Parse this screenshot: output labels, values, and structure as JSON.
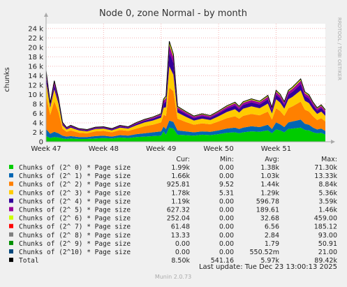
{
  "chart_data": {
    "type": "area",
    "stacked": true,
    "title": "Node 0, zone Normal - by month",
    "ylabel": "chunks",
    "right_label": "RRDTOOL / TOBI OETIKER",
    "ylim": [
      0,
      25000
    ],
    "yticks": [
      {
        "value": 0,
        "label": "0"
      },
      {
        "value": 2000,
        "label": "2 k"
      },
      {
        "value": 4000,
        "label": "4 k"
      },
      {
        "value": 6000,
        "label": "6 k"
      },
      {
        "value": 8000,
        "label": "8 k"
      },
      {
        "value": 10000,
        "label": "10 k"
      },
      {
        "value": 12000,
        "label": "12 k"
      },
      {
        "value": 14000,
        "label": "14 k"
      },
      {
        "value": 16000,
        "label": "16 k"
      },
      {
        "value": 18000,
        "label": "18 k"
      },
      {
        "value": 20000,
        "label": "20 k"
      },
      {
        "value": 22000,
        "label": "22 k"
      },
      {
        "value": 24000,
        "label": "24 k"
      }
    ],
    "x_range": [
      0,
      34
    ],
    "xticks": [
      {
        "value": 0,
        "label": "Week 47"
      },
      {
        "value": 7,
        "label": "Week 48"
      },
      {
        "value": 14,
        "label": "Week 49"
      },
      {
        "value": 21,
        "label": "Week 50"
      },
      {
        "value": 28,
        "label": "Week 51"
      }
    ],
    "x": [
      0,
      0.5,
      1,
      1.5,
      2,
      2.5,
      3,
      4,
      5,
      6,
      7,
      8,
      9,
      10,
      11,
      12,
      13,
      14,
      14.3,
      14.6,
      15,
      15.5,
      16,
      17,
      18,
      19,
      20,
      21,
      22,
      23,
      23.5,
      24,
      25,
      26,
      27,
      27.5,
      28,
      28.5,
      29,
      29.5,
      30,
      30.5,
      31,
      31.5,
      32,
      32.5,
      33,
      33.5,
      34
    ],
    "series": [
      {
        "name": "Chunks of (2^ 0) * Page size",
        "color": "#00cc00",
        "values": [
          1200,
          800,
          1000,
          900,
          700,
          600,
          700,
          600,
          600,
          700,
          800,
          700,
          900,
          800,
          1000,
          1100,
          1200,
          1300,
          2200,
          1500,
          3000,
          2800,
          1500,
          1400,
          1300,
          1500,
          1400,
          1600,
          1900,
          2000,
          1800,
          2000,
          2200,
          2100,
          2400,
          1800,
          2600,
          2400,
          2000,
          2700,
          2800,
          2900,
          3000,
          2500,
          2400,
          2000,
          1800,
          1900,
          1500
        ]
      },
      {
        "name": "Chunks of (2^ 1) * Page size",
        "color": "#0066b3",
        "values": [
          1500,
          900,
          1100,
          900,
          600,
          500,
          500,
          400,
          400,
          500,
          500,
          400,
          500,
          500,
          600,
          700,
          800,
          900,
          1000,
          1200,
          1500,
          1400,
          900,
          800,
          700,
          700,
          700,
          800,
          900,
          1000,
          900,
          1000,
          1100,
          1000,
          1200,
          900,
          1500,
          1300,
          1100,
          1400,
          1500,
          1600,
          1700,
          1300,
          1200,
          1000,
          800,
          900,
          800
        ]
      },
      {
        "name": "Chunks of (2^ 2) * Page size",
        "color": "#ff8000",
        "values": [
          7000,
          4000,
          6500,
          4500,
          1500,
          1000,
          1200,
          900,
          800,
          1000,
          1000,
          900,
          1100,
          1000,
          1200,
          1500,
          1600,
          1900,
          2500,
          2800,
          7000,
          6500,
          2500,
          2000,
          1600,
          1700,
          1600,
          1900,
          2200,
          2400,
          2200,
          2500,
          2600,
          2500,
          2800,
          2000,
          3000,
          2800,
          2400,
          3000,
          3200,
          3500,
          3800,
          3000,
          2800,
          2400,
          2000,
          2200,
          2000
        ]
      },
      {
        "name": "Chunks of (2^ 3) * Page size",
        "color": "#ffcc00",
        "values": [
          3000,
          1500,
          2500,
          1800,
          700,
          500,
          600,
          500,
          400,
          500,
          500,
          400,
          500,
          500,
          700,
          800,
          900,
          1000,
          1500,
          1800,
          4500,
          3500,
          1300,
          1100,
          900,
          1000,
          900,
          1100,
          1300,
          1500,
          1300,
          1500,
          1600,
          1500,
          1700,
          1300,
          1900,
          1800,
          1500,
          1900,
          2000,
          2200,
          2400,
          1900,
          1800,
          1500,
          1300,
          1400,
          1200
        ]
      },
      {
        "name": "Chunks of (2^ 4) * Page size",
        "color": "#330099",
        "values": [
          1200,
          500,
          900,
          600,
          300,
          200,
          250,
          200,
          200,
          200,
          200,
          200,
          250,
          200,
          300,
          350,
          400,
          450,
          900,
          1200,
          3000,
          2500,
          700,
          600,
          500,
          550,
          500,
          600,
          700,
          800,
          700,
          800,
          850,
          800,
          900,
          700,
          1000,
          950,
          800,
          1000,
          1100,
          1200,
          1300,
          1000,
          950,
          800,
          700,
          750,
          650
        ]
      },
      {
        "name": "Chunks of (2^ 5) * Page size",
        "color": "#990099",
        "values": [
          800,
          300,
          600,
          400,
          200,
          150,
          150,
          120,
          120,
          120,
          120,
          120,
          150,
          120,
          180,
          200,
          220,
          250,
          600,
          800,
          1500,
          1200,
          400,
          350,
          300,
          320,
          300,
          350,
          400,
          450,
          400,
          450,
          500,
          450,
          550,
          400,
          600,
          550,
          450,
          600,
          650,
          700,
          750,
          600,
          550,
          450,
          400,
          450,
          400
        ]
      },
      {
        "name": "Chunks of (2^ 6) * Page size",
        "color": "#ccff00",
        "values": [
          300,
          120,
          250,
          150,
          80,
          60,
          60,
          50,
          50,
          50,
          50,
          50,
          60,
          50,
          70,
          80,
          90,
          100,
          250,
          300,
          600,
          500,
          150,
          130,
          110,
          120,
          110,
          130,
          150,
          170,
          150,
          170,
          180,
          170,
          200,
          150,
          220,
          200,
          170,
          220,
          240,
          260,
          280,
          220,
          200,
          170,
          150,
          170,
          150
        ]
      },
      {
        "name": "Chunks of (2^ 7) * Page size",
        "color": "#ff0000",
        "values": [
          80,
          30,
          60,
          40,
          20,
          15,
          15,
          12,
          12,
          12,
          12,
          12,
          15,
          12,
          18,
          20,
          22,
          25,
          60,
          80,
          150,
          120,
          40,
          35,
          30,
          32,
          30,
          35,
          40,
          45,
          40,
          45,
          50,
          45,
          55,
          40,
          60,
          55,
          45,
          60,
          65,
          70,
          75,
          60,
          55,
          45,
          40,
          45,
          40
        ]
      },
      {
        "name": "Chunks of (2^ 8) * Page size",
        "color": "#808080",
        "values": [
          20,
          8,
          15,
          10,
          5,
          4,
          4,
          3,
          3,
          3,
          3,
          3,
          4,
          3,
          5,
          5,
          6,
          7,
          15,
          20,
          40,
          30,
          10,
          9,
          8,
          8,
          8,
          9,
          10,
          11,
          10,
          11,
          12,
          11,
          13,
          10,
          15,
          14,
          11,
          15,
          16,
          17,
          18,
          15,
          14,
          11,
          10,
          11,
          10
        ]
      },
      {
        "name": "Chunks of (2^ 9) * Page size",
        "color": "#008f00",
        "values": [
          5,
          2,
          4,
          3,
          1,
          1,
          1,
          1,
          1,
          1,
          1,
          1,
          1,
          1,
          1,
          1,
          2,
          2,
          4,
          5,
          10,
          8,
          3,
          2,
          2,
          2,
          2,
          2,
          3,
          3,
          3,
          3,
          3,
          3,
          3,
          3,
          4,
          4,
          3,
          4,
          4,
          4,
          5,
          4,
          4,
          3,
          3,
          3,
          2
        ]
      },
      {
        "name": "Chunks of (2^10) * Page size",
        "color": "#00487d",
        "values": [
          1,
          0,
          1,
          0,
          0,
          0,
          0,
          0,
          0,
          0,
          0,
          0,
          0,
          0,
          0,
          0,
          0,
          0,
          1,
          1,
          2,
          2,
          1,
          0,
          0,
          0,
          0,
          0,
          1,
          1,
          1,
          1,
          1,
          1,
          1,
          1,
          1,
          1,
          1,
          1,
          1,
          1,
          1,
          1,
          1,
          1,
          1,
          1,
          0
        ]
      }
    ],
    "total": {
      "name": "Total",
      "color": "#000000"
    },
    "legend_headers": {
      "cur": "Cur:",
      "min": "Min:",
      "avg": "Avg:",
      "max": "Max:"
    },
    "legend": [
      {
        "label": "Chunks of (2^ 0) * Page size",
        "color": "#00cc00",
        "cur": "1.99k",
        "min": "0.00",
        "avg": "1.38k",
        "max": "71.30k"
      },
      {
        "label": "Chunks of (2^ 1) * Page size",
        "color": "#0066b3",
        "cur": "1.66k",
        "min": "0.00",
        "avg": "1.03k",
        "max": "13.33k"
      },
      {
        "label": "Chunks of (2^ 2) * Page size",
        "color": "#ff8000",
        "cur": "925.81",
        "min": "9.52",
        "avg": "1.44k",
        "max": "8.84k"
      },
      {
        "label": "Chunks of (2^ 3) * Page size",
        "color": "#ffcc00",
        "cur": "1.78k",
        "min": "5.31",
        "avg": "1.29k",
        "max": "5.36k"
      },
      {
        "label": "Chunks of (2^ 4) * Page size",
        "color": "#330099",
        "cur": "1.19k",
        "min": "0.00",
        "avg": "596.78",
        "max": "3.59k"
      },
      {
        "label": "Chunks of (2^ 5) * Page size",
        "color": "#990099",
        "cur": "627.32",
        "min": "0.00",
        "avg": "189.61",
        "max": "1.46k"
      },
      {
        "label": "Chunks of (2^ 6) * Page size",
        "color": "#ccff00",
        "cur": "252.04",
        "min": "0.00",
        "avg": "32.68",
        "max": "459.00"
      },
      {
        "label": "Chunks of (2^ 7) * Page size",
        "color": "#ff0000",
        "cur": "61.48",
        "min": "0.00",
        "avg": "6.56",
        "max": "185.12"
      },
      {
        "label": "Chunks of (2^ 8) * Page size",
        "color": "#808080",
        "cur": "13.33",
        "min": "0.00",
        "avg": "2.84",
        "max": "93.00"
      },
      {
        "label": "Chunks of (2^ 9) * Page size",
        "color": "#008f00",
        "cur": "0.00",
        "min": "0.00",
        "avg": "1.79",
        "max": "50.91"
      },
      {
        "label": "Chunks of (2^10) * Page size",
        "color": "#00487d",
        "cur": "0.00",
        "min": "0.00",
        "avg": "550.52m",
        "max": "21.00"
      },
      {
        "label": "Total",
        "color": "#000000",
        "cur": "8.50k",
        "min": "541.16",
        "avg": "5.97k",
        "max": "89.42k"
      }
    ],
    "last_update": "Last update: Tue Dec 23 13:00:13 2025",
    "footer": "Munin 2.0.73",
    "grid": true
  }
}
